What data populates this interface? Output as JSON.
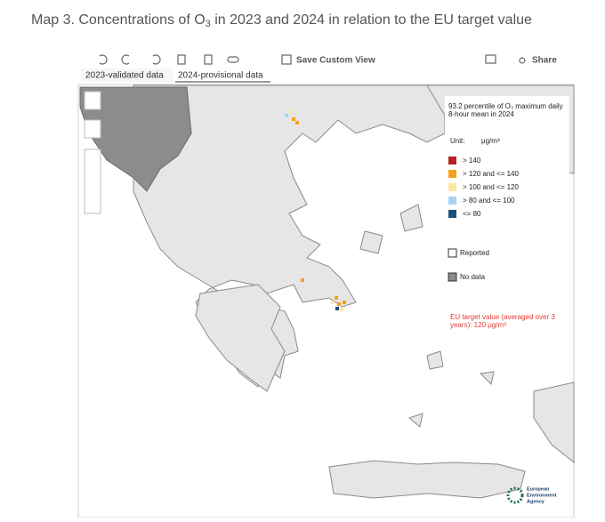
{
  "header": {
    "title_parts": [
      "Map 3. Concentrations of O",
      "3",
      " in 2023 and 2024 in relation to the EU target value"
    ]
  },
  "toolbar": {
    "save": "Save Custom View",
    "share": "Share"
  },
  "tabs": [
    "2023-validated data",
    "2024-provisional data"
  ],
  "legend": {
    "title_lines": [
      "93.2 percentile of O₃ maximum daily",
      "8-hour mean in 2024"
    ],
    "unit_label": "Unit:",
    "unit": "μg/m³",
    "items": [
      {
        "label": "> 140",
        "color": "#b22222"
      },
      {
        "label": "> 120 and <= 140",
        "color": "#f4a11a"
      },
      {
        "label": "> 100 and <= 120",
        "color": "#fbe7a1"
      },
      {
        "label": "> 80 and <= 100",
        "color": "#a9d3f2"
      },
      {
        "label": "<= 80",
        "color": "#1b4f7a"
      }
    ],
    "reported": "Reported",
    "no_data": "No data",
    "target_lines": [
      "EU target value (averaged over 3",
      "years): 120 μg/m³"
    ]
  },
  "logo": {
    "lines": [
      "European",
      "Environment",
      "Agency"
    ]
  }
}
